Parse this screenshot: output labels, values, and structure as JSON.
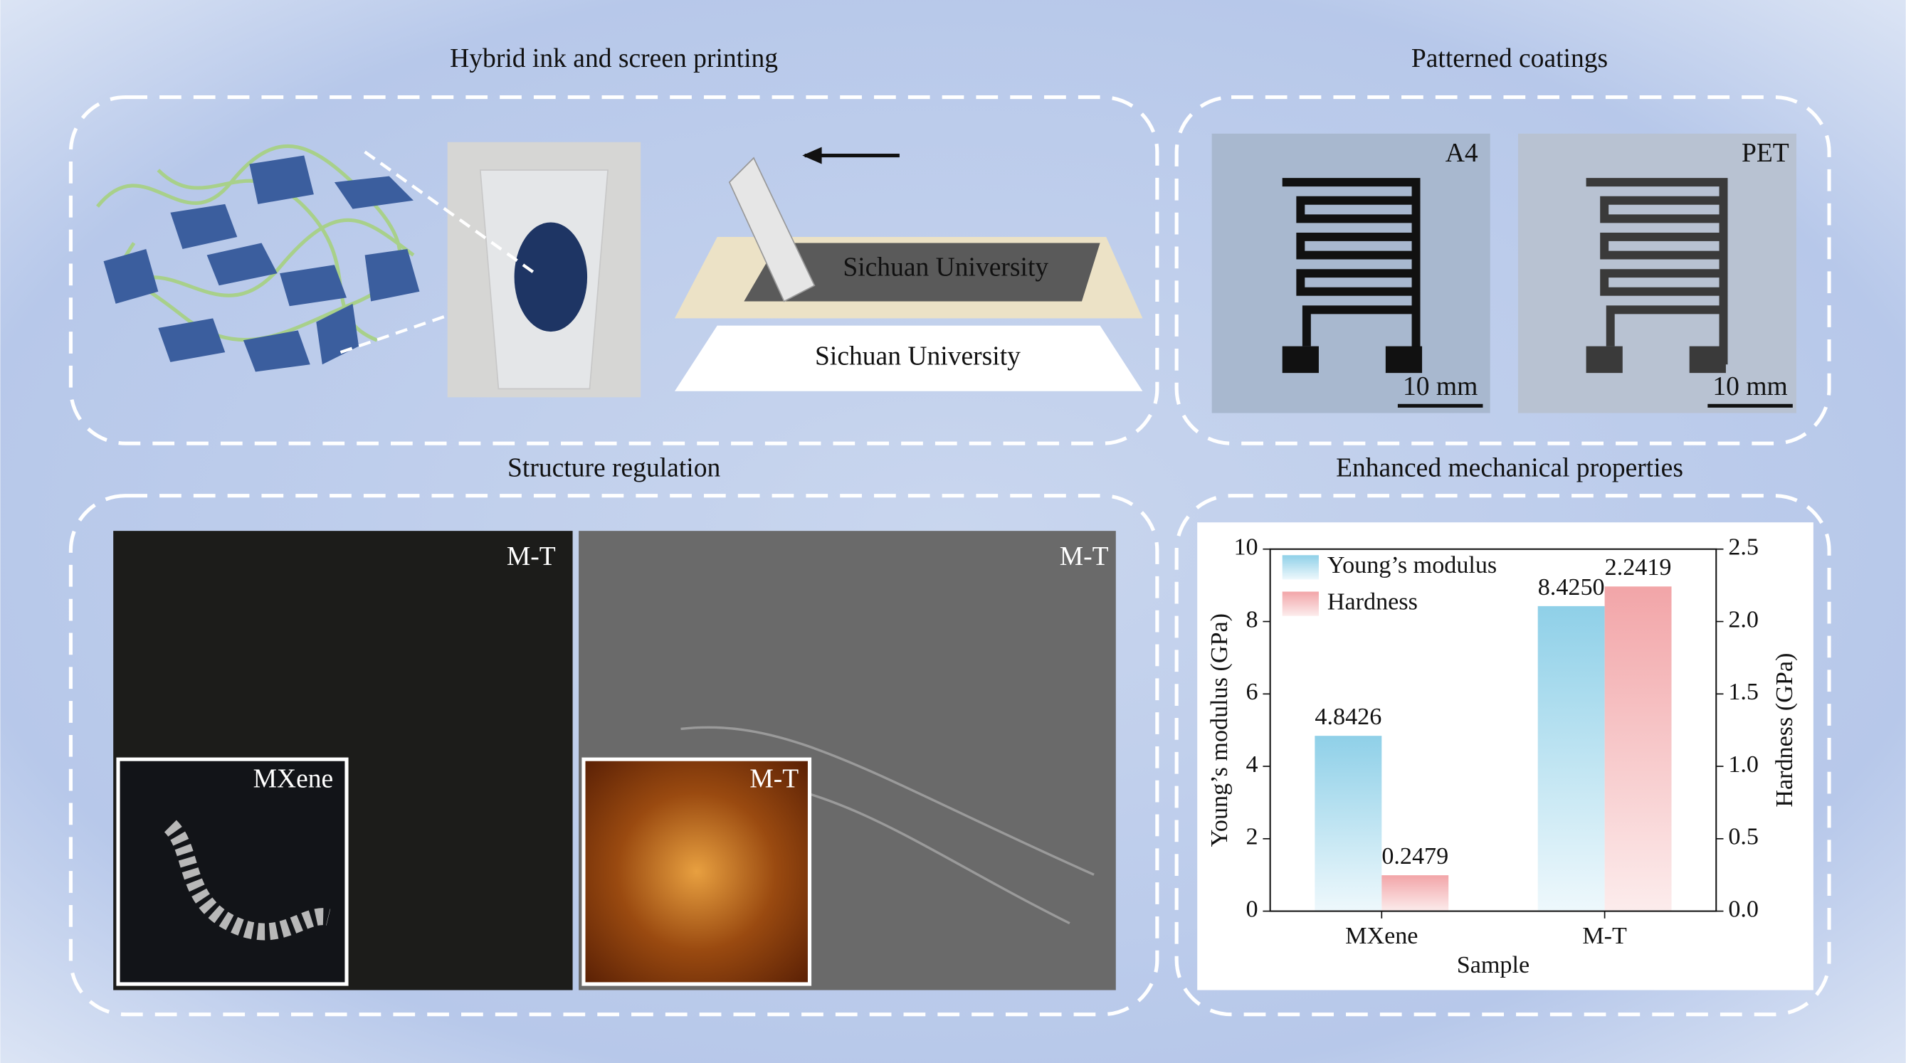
{
  "panels": [
    {
      "title": "Hybrid ink and screen printing",
      "labels": [
        "Sichuan University",
        "Sichuan University"
      ]
    },
    {
      "title": "Patterned coatings",
      "labels": [
        "A4",
        "PET"
      ],
      "scale_bars": [
        "10 mm",
        "10 mm"
      ]
    },
    {
      "title": "Structure regulation",
      "labels": [
        "M-T",
        "M-T"
      ],
      "insets": [
        "MXene",
        "M-T"
      ]
    },
    {
      "title": "Enhanced mechanical properties"
    }
  ],
  "chart_data": {
    "type": "bar",
    "categories": [
      "MXene",
      "M-T"
    ],
    "series": [
      {
        "name": "Young’s modulus",
        "color": "#8fd0e8",
        "axis": "y",
        "values": [
          4.8426,
          8.425
        ],
        "value_labels": [
          "4.8426",
          "8.4250"
        ]
      },
      {
        "name": "Hardness",
        "color": "#f2a5a8",
        "axis": "y2",
        "values": [
          0.2479,
          2.2419
        ],
        "value_labels": [
          "0.2479",
          "2.2419"
        ]
      }
    ],
    "xlabel": "Sample",
    "ylabel": "Young’s modulus (GPa)",
    "y2label": "Hardness (GPa)",
    "ylim": [
      0,
      10
    ],
    "yticks": [
      0,
      2,
      4,
      6,
      8,
      10
    ],
    "y2lim": [
      0,
      2.5
    ],
    "y2ticks": [
      {
        "value": 0,
        "label": "0.0"
      },
      0.5,
      {
        "value": 1,
        "label": "1.0"
      },
      1.5,
      {
        "value": 2,
        "label": "2.0"
      },
      2.5
    ],
    "legend": "upper left"
  }
}
